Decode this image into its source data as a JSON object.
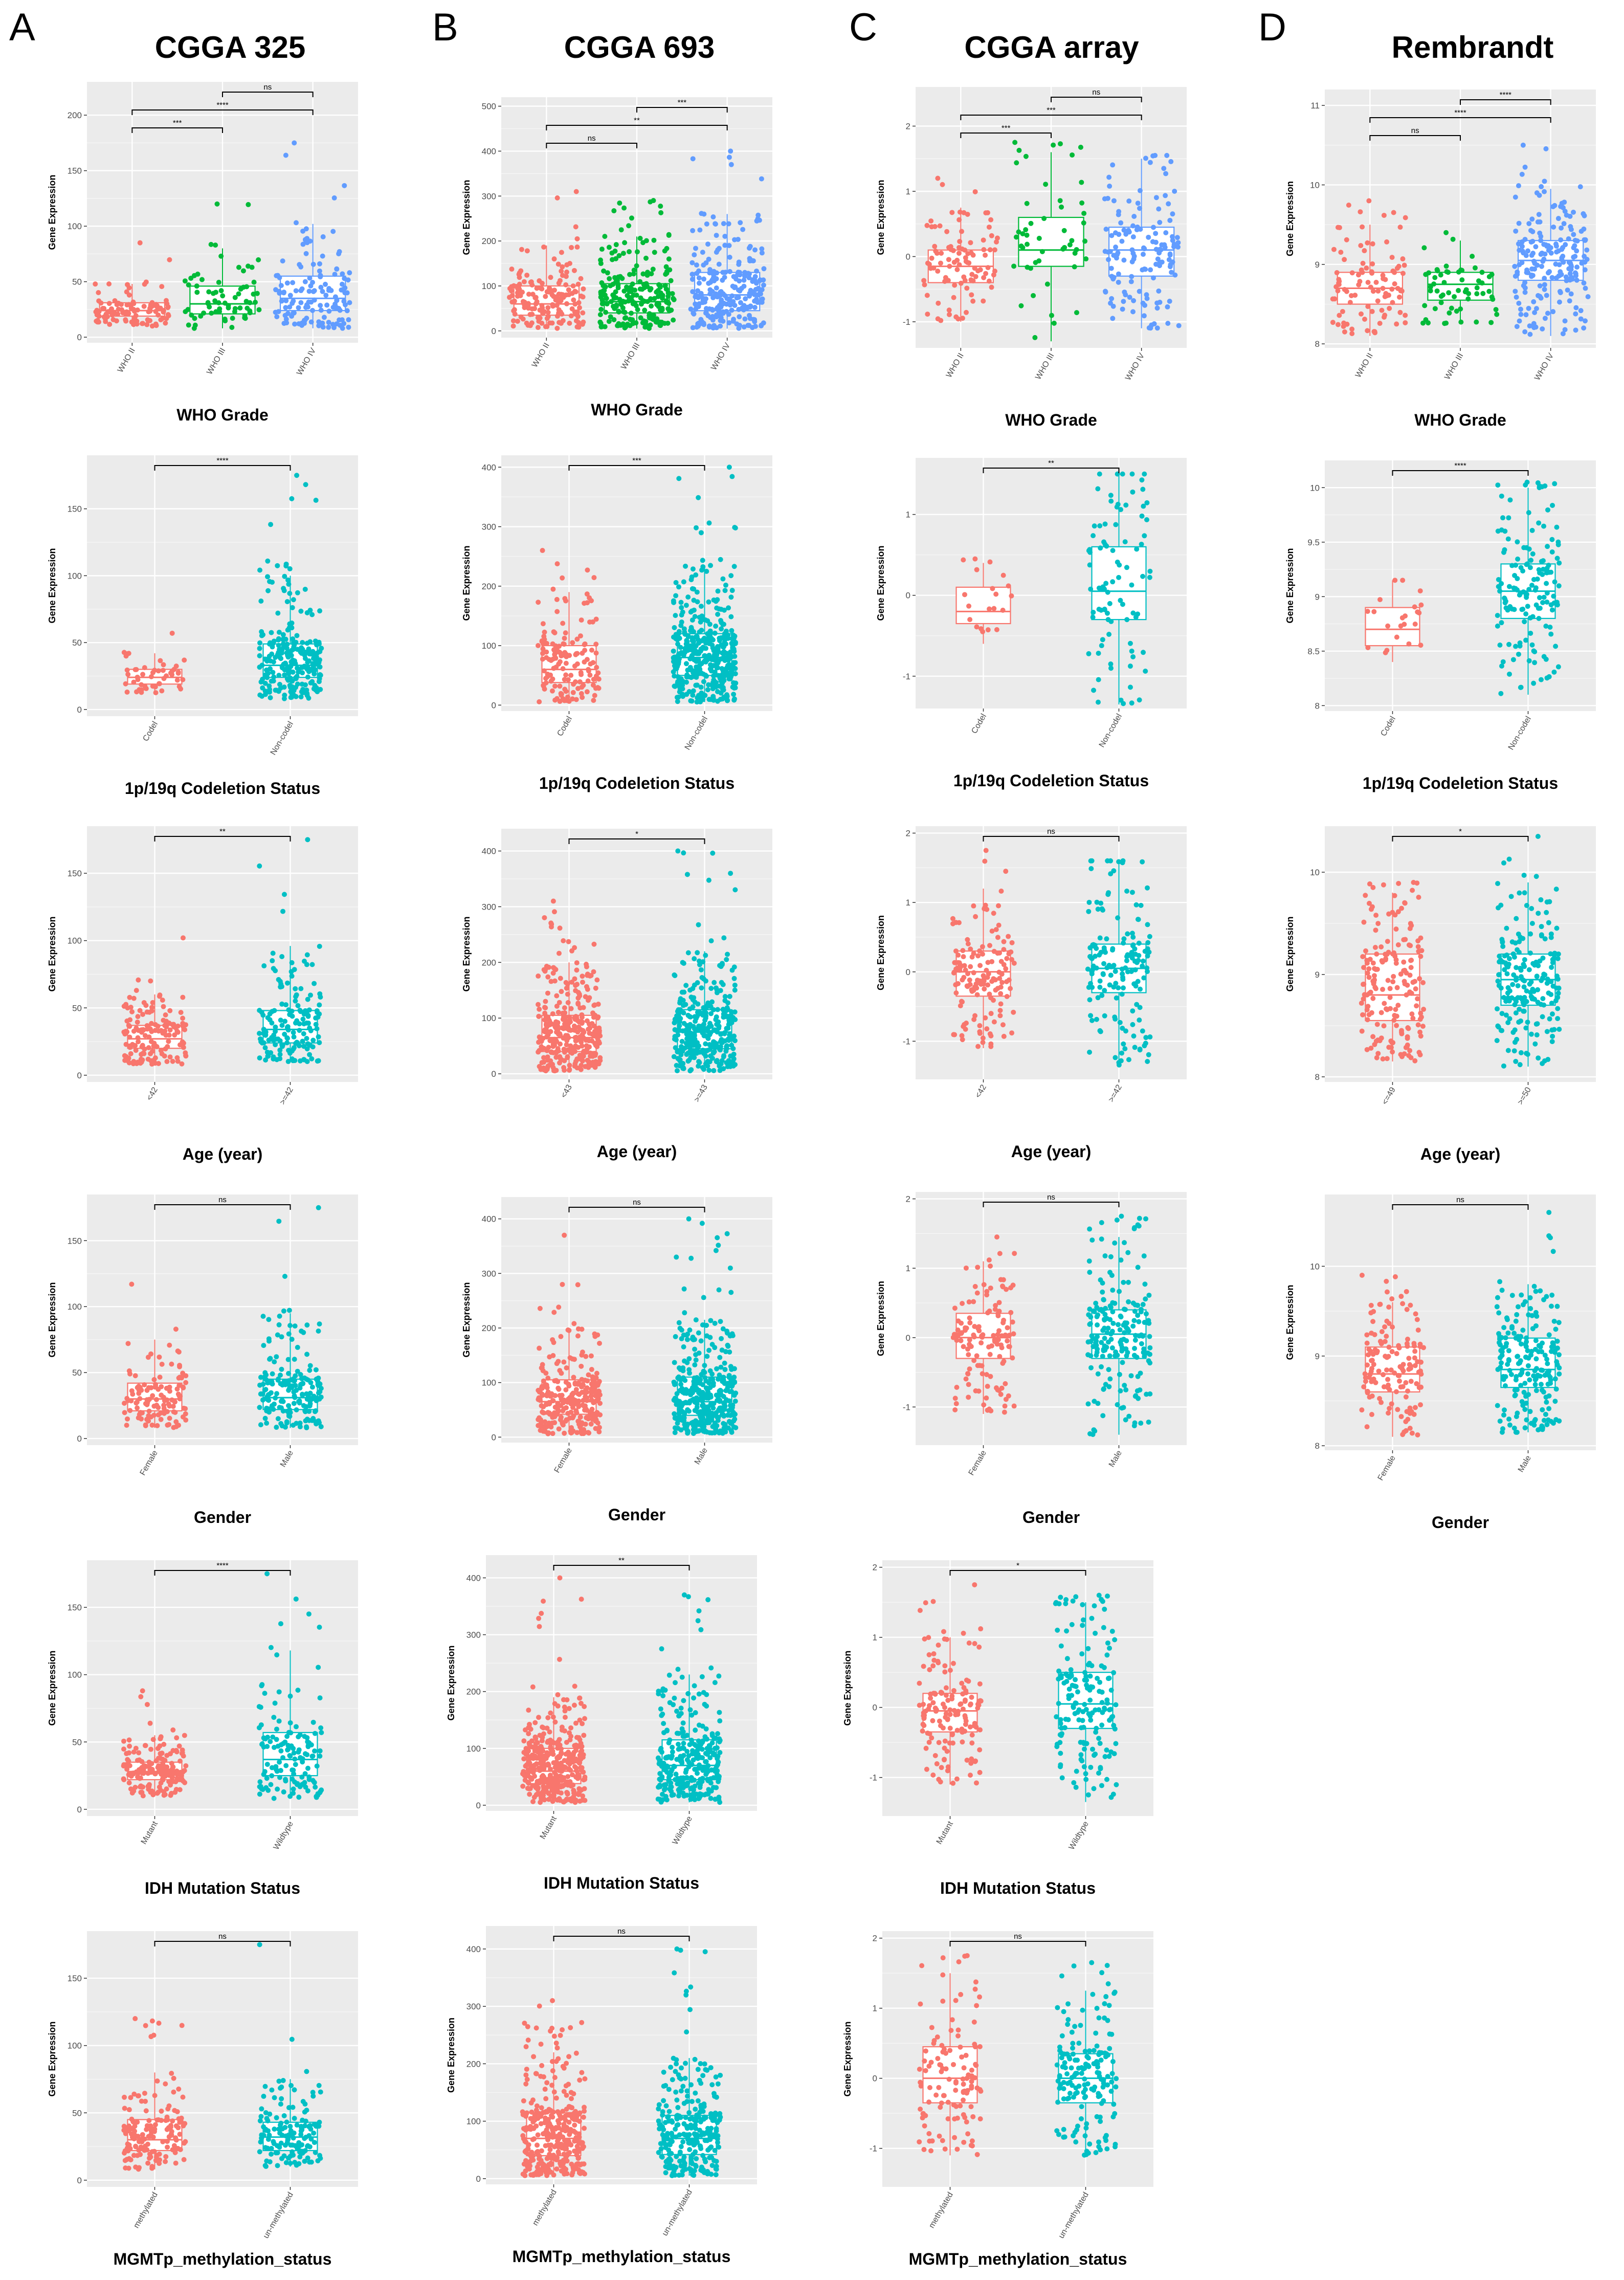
{
  "figure": {
    "panel_letters": [
      "A",
      "B",
      "C",
      "D"
    ],
    "column_titles": [
      "CGGA 325",
      "CGGA 693",
      "CGGA array",
      "Rembrandt"
    ]
  },
  "colors": {
    "red": "#F8766D",
    "green": "#00BA38",
    "blue": "#619CFF",
    "teal": "#00BFC4",
    "panel_bg": "#EBEBEB",
    "grid": "#FFFFFF"
  },
  "chart_data": [
    {
      "id": "A1",
      "type": "boxplot",
      "dataset": "CGGA 325",
      "xlabel": "WHO Grade",
      "ylabel": "Gene Expression",
      "ylim": [
        -5,
        230
      ],
      "yticks": [
        0,
        50,
        100,
        150,
        200
      ],
      "groups": [
        {
          "name": "WHO II",
          "color": "green_no",
          "q1": 19,
          "median": 24,
          "q3": 31,
          "wl": 10,
          "wh": 48,
          "n": 110,
          "max": 85
        },
        {
          "name": "WHO III",
          "q1": 21,
          "median": 30,
          "q3": 46,
          "wl": 8,
          "wh": 80,
          "n": 70,
          "max": 120
        },
        {
          "name": "WHO IV",
          "q1": 24,
          "median": 35,
          "q3": 55,
          "wl": 8,
          "wh": 102,
          "n": 140,
          "max": 175
        }
      ],
      "comparisons": [
        {
          "a": 1,
          "b": 2,
          "label": "ns"
        },
        {
          "a": 0,
          "b": 2,
          "label": "****"
        },
        {
          "a": 0,
          "b": 1,
          "label": "***"
        }
      ]
    },
    {
      "id": "B1",
      "type": "boxplot",
      "dataset": "CGGA 693",
      "xlabel": "WHO Grade",
      "ylabel": "Gene Expression",
      "ylim": [
        -15,
        520
      ],
      "yticks": [
        0,
        100,
        200,
        300,
        400,
        500
      ],
      "groups": [
        {
          "name": "WHO II",
          "q1": 35,
          "median": 60,
          "q3": 100,
          "wl": 5,
          "wh": 190,
          "n": 170,
          "max": 310
        },
        {
          "name": "WHO III",
          "q1": 40,
          "median": 65,
          "q3": 105,
          "wl": 5,
          "wh": 210,
          "n": 230,
          "max": 290
        },
        {
          "name": "WHO IV",
          "q1": 45,
          "median": 80,
          "q3": 130,
          "wl": 5,
          "wh": 260,
          "n": 260,
          "max": 400
        }
      ],
      "comparisons": [
        {
          "a": 1,
          "b": 2,
          "label": "***"
        },
        {
          "a": 0,
          "b": 2,
          "label": "**"
        },
        {
          "a": 0,
          "b": 1,
          "label": "ns"
        }
      ]
    },
    {
      "id": "C1",
      "type": "boxplot",
      "dataset": "CGGA array",
      "xlabel": "WHO Grade",
      "ylabel": "Gene Expression",
      "ylim": [
        -1.4,
        2.6
      ],
      "yticks": [
        -1,
        0,
        1,
        2
      ],
      "groups": [
        {
          "name": "WHO II",
          "q1": -0.4,
          "median": -0.15,
          "q3": 0.1,
          "wl": -1.0,
          "wh": 0.75,
          "n": 100,
          "max": 1.2
        },
        {
          "name": "WHO III",
          "q1": -0.15,
          "median": 0.1,
          "q3": 0.6,
          "wl": -1.3,
          "wh": 1.6,
          "n": 50,
          "max": 1.75
        },
        {
          "name": "WHO IV",
          "q1": -0.3,
          "median": 0.1,
          "q3": 0.45,
          "wl": -1.1,
          "wh": 1.5,
          "n": 140,
          "max": 1.55
        }
      ],
      "comparisons": [
        {
          "a": 1,
          "b": 2,
          "label": "ns"
        },
        {
          "a": 0,
          "b": 2,
          "label": "***"
        },
        {
          "a": 0,
          "b": 1,
          "label": "***"
        }
      ]
    },
    {
      "id": "D1",
      "type": "boxplot",
      "dataset": "Rembrandt",
      "xlabel": "WHO Grade",
      "ylabel": "Gene Expression",
      "ylim": [
        7.95,
        11.2
      ],
      "yticks": [
        8,
        9,
        10,
        11
      ],
      "groups": [
        {
          "name": "WHO II",
          "q1": 8.5,
          "median": 8.7,
          "q3": 8.9,
          "wl": 8.1,
          "wh": 9.5,
          "n": 100,
          "max": 9.8
        },
        {
          "name": "WHO III",
          "q1": 8.55,
          "median": 8.75,
          "q3": 8.9,
          "wl": 8.25,
          "wh": 9.3,
          "n": 60,
          "max": 9.4
        },
        {
          "name": "WHO IV",
          "q1": 8.8,
          "median": 9.05,
          "q3": 9.3,
          "wl": 8.1,
          "wh": 9.95,
          "n": 200,
          "max": 10.5
        }
      ],
      "comparisons": [
        {
          "a": 1,
          "b": 2,
          "label": "****"
        },
        {
          "a": 0,
          "b": 2,
          "label": "****"
        },
        {
          "a": 0,
          "b": 1,
          "label": "ns"
        }
      ]
    },
    {
      "id": "A2",
      "type": "boxplot",
      "dataset": "CGGA 325",
      "xlabel": "1p/19q Codeletion Status",
      "ylabel": "Gene Expression",
      "ylim": [
        -5,
        190
      ],
      "yticks": [
        0,
        50,
        100,
        150
      ],
      "groups": [
        {
          "name": "Codel",
          "q1": 19,
          "median": 24,
          "q3": 30,
          "wl": 12,
          "wh": 42,
          "n": 50,
          "max": 57
        },
        {
          "name": "Non-codel",
          "q1": 24,
          "median": 33,
          "q3": 49,
          "wl": 8,
          "wh": 100,
          "n": 260,
          "max": 175
        }
      ],
      "comparisons": [
        {
          "a": 0,
          "b": 1,
          "label": "****"
        }
      ]
    },
    {
      "id": "B2",
      "type": "boxplot",
      "dataset": "CGGA 693",
      "xlabel": "1p/19q Codeletion Status",
      "ylabel": "Gene Expression",
      "ylim": [
        -10,
        420
      ],
      "yticks": [
        0,
        100,
        200,
        300,
        400
      ],
      "groups": [
        {
          "name": "Codel",
          "q1": 38,
          "median": 60,
          "q3": 100,
          "wl": 5,
          "wh": 190,
          "n": 150,
          "max": 260
        },
        {
          "name": "Non-codel",
          "q1": 50,
          "median": 80,
          "q3": 120,
          "wl": 5,
          "wh": 235,
          "n": 430,
          "max": 400
        }
      ],
      "comparisons": [
        {
          "a": 0,
          "b": 1,
          "label": "***"
        }
      ]
    },
    {
      "id": "C2",
      "type": "boxplot",
      "dataset": "CGGA array",
      "xlabel": "1p/19q Codeletion Status",
      "ylabel": "Gene Expression",
      "ylim": [
        -1.4,
        1.7
      ],
      "yticks": [
        -1,
        0,
        1
      ],
      "groups": [
        {
          "name": "Codel",
          "q1": -0.35,
          "median": -0.2,
          "q3": 0.1,
          "wl": -0.6,
          "wh": 0.4,
          "n": 20,
          "max": 0.45
        },
        {
          "name": "Non-codel",
          "q1": -0.3,
          "median": 0.05,
          "q3": 0.6,
          "wl": -1.35,
          "wh": 1.5,
          "n": 90,
          "max": 1.5
        }
      ],
      "comparisons": [
        {
          "a": 0,
          "b": 1,
          "label": "**"
        }
      ]
    },
    {
      "id": "D2",
      "type": "boxplot",
      "dataset": "Rembrandt",
      "xlabel": "1p/19q Codeletion Status",
      "ylabel": "Gene Expression",
      "ylim": [
        7.95,
        10.25
      ],
      "yticks": [
        8.0,
        8.5,
        9.0,
        9.5,
        10.0
      ],
      "groups": [
        {
          "name": "Codel",
          "q1": 8.55,
          "median": 8.7,
          "q3": 8.9,
          "wl": 8.4,
          "wh": 9.15,
          "n": 22,
          "max": 9.15
        },
        {
          "name": "Non-codel",
          "q1": 8.8,
          "median": 9.05,
          "q3": 9.3,
          "wl": 8.1,
          "wh": 10.0,
          "n": 150,
          "max": 10.05
        }
      ],
      "comparisons": [
        {
          "a": 0,
          "b": 1,
          "label": "****"
        }
      ]
    },
    {
      "id": "A3",
      "type": "boxplot",
      "dataset": "CGGA 325",
      "xlabel": "Age (year)",
      "ylabel": "Gene Expression",
      "ylim": [
        -5,
        185
      ],
      "yticks": [
        0,
        50,
        100,
        150
      ],
      "groups": [
        {
          "name": "<42",
          "q1": 20,
          "median": 27,
          "q3": 37,
          "wl": 8,
          "wh": 60,
          "n": 150,
          "max": 102
        },
        {
          "name": ">=42",
          "q1": 24,
          "median": 34,
          "q3": 48,
          "wl": 10,
          "wh": 96,
          "n": 160,
          "max": 175
        }
      ],
      "comparisons": [
        {
          "a": 0,
          "b": 1,
          "label": "**"
        }
      ]
    },
    {
      "id": "B3",
      "type": "boxplot",
      "dataset": "CGGA 693",
      "xlabel": "Age (year)",
      "ylabel": "Gene Expression",
      "ylim": [
        -10,
        440
      ],
      "yticks": [
        0,
        100,
        200,
        300,
        400
      ],
      "groups": [
        {
          "name": "<43",
          "q1": 40,
          "median": 65,
          "q3": 105,
          "wl": 5,
          "wh": 200,
          "n": 330,
          "max": 310
        },
        {
          "name": ">=43",
          "q1": 45,
          "median": 75,
          "q3": 115,
          "wl": 5,
          "wh": 220,
          "n": 330,
          "max": 400
        }
      ],
      "comparisons": [
        {
          "a": 0,
          "b": 1,
          "label": "*"
        }
      ]
    },
    {
      "id": "C3",
      "type": "boxplot",
      "dataset": "CGGA array",
      "xlabel": "Age (year)",
      "ylabel": "Gene Expression",
      "ylim": [
        -1.55,
        2.1
      ],
      "yticks": [
        -1,
        0,
        1,
        2
      ],
      "groups": [
        {
          "name": "<42",
          "q1": -0.35,
          "median": 0.0,
          "q3": 0.3,
          "wl": -1.1,
          "wh": 1.2,
          "n": 150,
          "max": 1.75
        },
        {
          "name": ">=42",
          "q1": -0.3,
          "median": 0.05,
          "q3": 0.4,
          "wl": -1.35,
          "wh": 1.6,
          "n": 160,
          "max": 1.6
        }
      ],
      "comparisons": [
        {
          "a": 0,
          "b": 1,
          "label": "ns"
        }
      ]
    },
    {
      "id": "D3",
      "type": "boxplot",
      "dataset": "Rembrandt",
      "xlabel": "Age (year)",
      "ylabel": "Gene Expression",
      "ylim": [
        7.95,
        10.45
      ],
      "yticks": [
        8,
        9,
        10
      ],
      "groups": [
        {
          "name": "<=49",
          "q1": 8.55,
          "median": 8.8,
          "q3": 9.2,
          "wl": 8.15,
          "wh": 9.8,
          "n": 180,
          "max": 9.9
        },
        {
          "name": ">=50",
          "q1": 8.7,
          "median": 8.95,
          "q3": 9.2,
          "wl": 8.1,
          "wh": 9.9,
          "n": 200,
          "max": 10.35
        }
      ],
      "comparisons": [
        {
          "a": 0,
          "b": 1,
          "label": "*"
        }
      ]
    },
    {
      "id": "A4",
      "type": "boxplot",
      "dataset": "CGGA 325",
      "xlabel": "Gender",
      "ylabel": "Gene Expression",
      "ylim": [
        -5,
        185
      ],
      "yticks": [
        0,
        50,
        100,
        150
      ],
      "groups": [
        {
          "name": "Female",
          "q1": 21,
          "median": 30,
          "q3": 42,
          "wl": 8,
          "wh": 75,
          "n": 125,
          "max": 117
        },
        {
          "name": "Male",
          "q1": 22,
          "median": 31,
          "q3": 45,
          "wl": 8,
          "wh": 95,
          "n": 190,
          "max": 175
        }
      ],
      "comparisons": [
        {
          "a": 0,
          "b": 1,
          "label": "ns"
        }
      ]
    },
    {
      "id": "B4",
      "type": "boxplot",
      "dataset": "CGGA 693",
      "xlabel": "Gender",
      "ylabel": "Gene Expression",
      "ylim": [
        -10,
        440
      ],
      "yticks": [
        0,
        100,
        200,
        300,
        400
      ],
      "groups": [
        {
          "name": "Female",
          "q1": 42,
          "median": 65,
          "q3": 105,
          "wl": 5,
          "wh": 200,
          "n": 290,
          "max": 370
        },
        {
          "name": "Male",
          "q1": 40,
          "median": 65,
          "q3": 110,
          "wl": 5,
          "wh": 215,
          "n": 380,
          "max": 400
        }
      ],
      "comparisons": [
        {
          "a": 0,
          "b": 1,
          "label": "ns"
        }
      ]
    },
    {
      "id": "C4",
      "type": "boxplot",
      "dataset": "CGGA array",
      "xlabel": "Gender",
      "ylabel": "Gene Expression",
      "ylim": [
        -1.55,
        2.1
      ],
      "yticks": [
        -1,
        0,
        1,
        2
      ],
      "groups": [
        {
          "name": "Female",
          "q1": -0.3,
          "median": 0.0,
          "q3": 0.35,
          "wl": -1.1,
          "wh": 1.1,
          "n": 130,
          "max": 1.45
        },
        {
          "name": "Male",
          "q1": -0.3,
          "median": 0.05,
          "q3": 0.4,
          "wl": -1.4,
          "wh": 1.45,
          "n": 200,
          "max": 1.75
        }
      ],
      "comparisons": [
        {
          "a": 0,
          "b": 1,
          "label": "ns"
        }
      ]
    },
    {
      "id": "D4",
      "type": "boxplot",
      "dataset": "Rembrandt",
      "xlabel": "Gender",
      "ylabel": "Gene Expression",
      "ylim": [
        7.95,
        10.8
      ],
      "yticks": [
        8,
        9,
        10
      ],
      "groups": [
        {
          "name": "Female",
          "q1": 8.6,
          "median": 8.8,
          "q3": 9.1,
          "wl": 8.1,
          "wh": 9.6,
          "n": 140,
          "max": 9.9
        },
        {
          "name": "Male",
          "q1": 8.65,
          "median": 8.85,
          "q3": 9.2,
          "wl": 8.15,
          "wh": 9.8,
          "n": 200,
          "max": 10.6
        }
      ],
      "comparisons": [
        {
          "a": 0,
          "b": 1,
          "label": "ns"
        }
      ]
    },
    {
      "id": "A5",
      "type": "boxplot",
      "dataset": "CGGA 325",
      "xlabel": "IDH Mutation Status",
      "ylabel": "Gene Expression",
      "ylim": [
        -5,
        185
      ],
      "yticks": [
        0,
        50,
        100,
        150
      ],
      "groups": [
        {
          "name": "Mutant",
          "q1": 22,
          "median": 28,
          "q3": 35,
          "wl": 10,
          "wh": 55,
          "n": 175,
          "max": 88
        },
        {
          "name": "Wildtype",
          "q1": 25,
          "median": 37,
          "q3": 57,
          "wl": 8,
          "wh": 118,
          "n": 140,
          "max": 175
        }
      ],
      "comparisons": [
        {
          "a": 0,
          "b": 1,
          "label": "****"
        }
      ]
    },
    {
      "id": "B5",
      "type": "boxplot",
      "dataset": "CGGA 693",
      "xlabel": "IDH Mutation Status",
      "ylabel": "Gene Expression",
      "ylim": [
        -10,
        440
      ],
      "yticks": [
        0,
        100,
        200,
        300,
        400
      ],
      "groups": [
        {
          "name": "Mutant",
          "q1": 38,
          "median": 60,
          "q3": 100,
          "wl": 5,
          "wh": 190,
          "n": 370,
          "max": 400
        },
        {
          "name": "Wildtype",
          "q1": 45,
          "median": 70,
          "q3": 115,
          "wl": 5,
          "wh": 230,
          "n": 300,
          "max": 370
        }
      ],
      "comparisons": [
        {
          "a": 0,
          "b": 1,
          "label": "**"
        }
      ]
    },
    {
      "id": "C5",
      "type": "boxplot",
      "dataset": "CGGA array",
      "xlabel": "IDH Mutation Status",
      "ylabel": "Gene Expression",
      "ylim": [
        -1.55,
        2.1
      ],
      "yticks": [
        -1,
        0,
        1,
        2
      ],
      "groups": [
        {
          "name": "Mutant",
          "q1": -0.35,
          "median": -0.05,
          "q3": 0.2,
          "wl": -1.1,
          "wh": 1.0,
          "n": 150,
          "max": 1.75
        },
        {
          "name": "Wildtype",
          "q1": -0.3,
          "median": 0.05,
          "q3": 0.5,
          "wl": -1.35,
          "wh": 1.5,
          "n": 170,
          "max": 1.6
        }
      ],
      "comparisons": [
        {
          "a": 0,
          "b": 1,
          "label": "*"
        }
      ]
    },
    {
      "id": "A6",
      "type": "boxplot",
      "dataset": "CGGA 325",
      "xlabel": "MGMTp_methylation_status",
      "ylabel": "Gene Expression",
      "ylim": [
        -5,
        185
      ],
      "yticks": [
        0,
        50,
        100,
        150
      ],
      "groups": [
        {
          "name": "methylated",
          "q1": 22,
          "median": 30,
          "q3": 45,
          "wl": 8,
          "wh": 80,
          "n": 160,
          "max": 120
        },
        {
          "name": "un-methylated",
          "q1": 22,
          "median": 32,
          "q3": 43,
          "wl": 10,
          "wh": 75,
          "n": 150,
          "max": 175
        }
      ],
      "comparisons": [
        {
          "a": 0,
          "b": 1,
          "label": "ns"
        }
      ]
    },
    {
      "id": "B6",
      "type": "boxplot",
      "dataset": "CGGA 693",
      "xlabel": "MGMTp_methylation_status",
      "ylabel": "Gene Expression",
      "ylim": [
        -10,
        440
      ],
      "yticks": [
        0,
        100,
        200,
        300,
        400
      ],
      "groups": [
        {
          "name": "methylated",
          "q1": 40,
          "median": 70,
          "q3": 115,
          "wl": 5,
          "wh": 220,
          "n": 330,
          "max": 310
        },
        {
          "name": "un-methylated",
          "q1": 42,
          "median": 70,
          "q3": 110,
          "wl": 5,
          "wh": 210,
          "n": 290,
          "max": 400
        }
      ],
      "comparisons": [
        {
          "a": 0,
          "b": 1,
          "label": "ns"
        }
      ]
    },
    {
      "id": "C6",
      "type": "boxplot",
      "dataset": "CGGA array",
      "xlabel": "MGMTp_methylation_status",
      "ylabel": "Gene Expression",
      "ylim": [
        -1.55,
        2.1
      ],
      "yticks": [
        -1,
        0,
        1,
        2
      ],
      "groups": [
        {
          "name": "methylated",
          "q1": -0.35,
          "median": 0.0,
          "q3": 0.45,
          "wl": -1.1,
          "wh": 1.5,
          "n": 120,
          "max": 1.75
        },
        {
          "name": "un-methylated",
          "q1": -0.35,
          "median": 0.0,
          "q3": 0.35,
          "wl": -1.1,
          "wh": 1.25,
          "n": 170,
          "max": 1.65
        }
      ],
      "comparisons": [
        {
          "a": 0,
          "b": 1,
          "label": "ns"
        }
      ]
    }
  ]
}
